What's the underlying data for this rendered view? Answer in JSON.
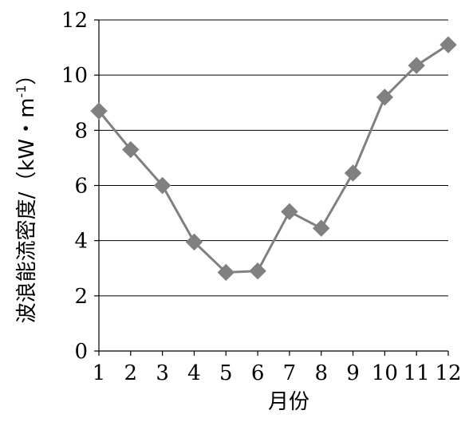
{
  "chart_data": {
    "type": "line",
    "xlabel": "月份",
    "ylabel": "波浪能流密度/（kW・m⁻¹）",
    "ylabel_parts": {
      "main": "波浪能流密度/（kW・m",
      "sup": "-1",
      "close": "）"
    },
    "x": [
      1,
      2,
      3,
      4,
      5,
      6,
      7,
      8,
      9,
      10,
      11,
      12
    ],
    "x_tick_labels": [
      "1",
      "2",
      "3",
      "4",
      "5",
      "6",
      "7",
      "8",
      "9",
      "10",
      "11",
      "12"
    ],
    "y_ticks": [
      0,
      2,
      4,
      6,
      8,
      10,
      12
    ],
    "y_tick_labels": [
      "0",
      "2",
      "4",
      "6",
      "8",
      "10",
      "12"
    ],
    "ylim": [
      0,
      12
    ],
    "grid": "horizontal",
    "series": [
      {
        "values": [
          8.7,
          7.3,
          6.0,
          3.95,
          2.85,
          2.9,
          5.05,
          4.45,
          6.45,
          9.2,
          10.35,
          11.1
        ],
        "color": "#808080",
        "marker": "diamond"
      }
    ]
  }
}
